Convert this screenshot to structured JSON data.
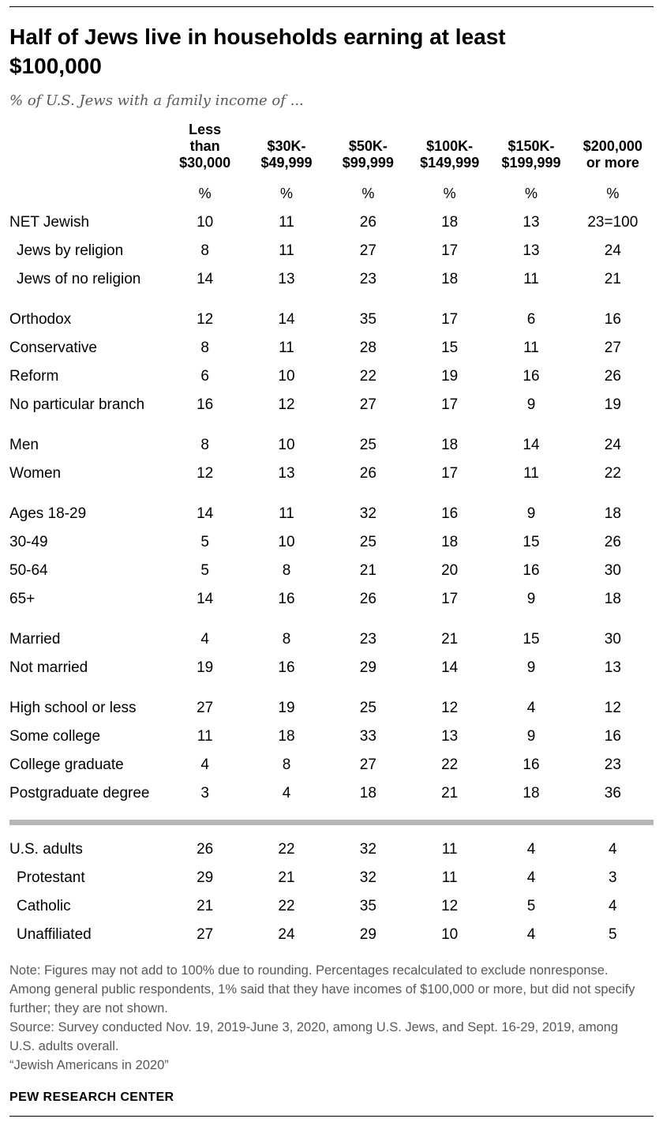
{
  "header": {
    "title": "Half of Jews live in households earning at least $100,000",
    "subtitle": "% of U.S. Jews with a family income of ..."
  },
  "chart_data": {
    "type": "table",
    "title": "Half of Jews live in households earning at least $100,000",
    "subtitle": "% of U.S. Jews with a family income of ...",
    "unit": "%",
    "columns": [
      {
        "label": "Less than $30,000",
        "lines": [
          "Less",
          "than",
          "$30,000"
        ]
      },
      {
        "label": "$30K-$49,999",
        "lines": [
          "$30K-",
          "$49,999"
        ]
      },
      {
        "label": "$50K-$99,999",
        "lines": [
          "$50K-",
          "$99,999"
        ]
      },
      {
        "label": "$100K-$149,999",
        "lines": [
          "$100K-",
          "$149,999"
        ]
      },
      {
        "label": "$150K-$199,999",
        "lines": [
          "$150K-",
          "$199,999"
        ]
      },
      {
        "label": "$200,000 or more",
        "lines": [
          "$200,000",
          "or more"
        ]
      }
    ],
    "groups": [
      {
        "divider_before": false,
        "rows": [
          {
            "label": "NET Jewish",
            "indent": false,
            "values": [
              "10",
              "11",
              "26",
              "18",
              "13",
              "23=100"
            ]
          },
          {
            "label": "Jews by religion",
            "indent": true,
            "values": [
              "8",
              "11",
              "27",
              "17",
              "13",
              "24"
            ]
          },
          {
            "label": "Jews of no religion",
            "indent": true,
            "values": [
              "14",
              "13",
              "23",
              "18",
              "11",
              "21"
            ]
          }
        ]
      },
      {
        "divider_before": false,
        "rows": [
          {
            "label": "Orthodox",
            "indent": false,
            "values": [
              "12",
              "14",
              "35",
              "17",
              "6",
              "16"
            ]
          },
          {
            "label": "Conservative",
            "indent": false,
            "values": [
              "8",
              "11",
              "28",
              "15",
              "11",
              "27"
            ]
          },
          {
            "label": "Reform",
            "indent": false,
            "values": [
              "6",
              "10",
              "22",
              "19",
              "16",
              "26"
            ]
          },
          {
            "label": "No particular branch",
            "indent": false,
            "values": [
              "16",
              "12",
              "27",
              "17",
              "9",
              "19"
            ]
          }
        ]
      },
      {
        "divider_before": false,
        "rows": [
          {
            "label": "Men",
            "indent": false,
            "values": [
              "8",
              "10",
              "25",
              "18",
              "14",
              "24"
            ]
          },
          {
            "label": "Women",
            "indent": false,
            "values": [
              "12",
              "13",
              "26",
              "17",
              "11",
              "22"
            ]
          }
        ]
      },
      {
        "divider_before": false,
        "rows": [
          {
            "label": "Ages 18-29",
            "indent": false,
            "values": [
              "14",
              "11",
              "32",
              "16",
              "9",
              "18"
            ]
          },
          {
            "label": "30-49",
            "indent": false,
            "values": [
              "5",
              "10",
              "25",
              "18",
              "15",
              "26"
            ]
          },
          {
            "label": "50-64",
            "indent": false,
            "values": [
              "5",
              "8",
              "21",
              "20",
              "16",
              "30"
            ]
          },
          {
            "label": "65+",
            "indent": false,
            "values": [
              "14",
              "16",
              "26",
              "17",
              "9",
              "18"
            ]
          }
        ]
      },
      {
        "divider_before": false,
        "rows": [
          {
            "label": "Married",
            "indent": false,
            "values": [
              "4",
              "8",
              "23",
              "21",
              "15",
              "30"
            ]
          },
          {
            "label": "Not married",
            "indent": false,
            "values": [
              "19",
              "16",
              "29",
              "14",
              "9",
              "13"
            ]
          }
        ]
      },
      {
        "divider_before": false,
        "rows": [
          {
            "label": "High school or less",
            "indent": false,
            "values": [
              "27",
              "19",
              "25",
              "12",
              "4",
              "12"
            ]
          },
          {
            "label": "Some college",
            "indent": false,
            "values": [
              "11",
              "18",
              "33",
              "13",
              "9",
              "16"
            ]
          },
          {
            "label": "College graduate",
            "indent": false,
            "values": [
              "4",
              "8",
              "27",
              "22",
              "16",
              "23"
            ]
          },
          {
            "label": "Postgraduate degree",
            "indent": false,
            "values": [
              "3",
              "4",
              "18",
              "21",
              "18",
              "36"
            ]
          }
        ]
      },
      {
        "divider_before": true,
        "rows": [
          {
            "label": "U.S. adults",
            "indent": false,
            "values": [
              "26",
              "22",
              "32",
              "11",
              "4",
              "4"
            ]
          },
          {
            "label": "Protestant",
            "indent": true,
            "values": [
              "29",
              "21",
              "32",
              "11",
              "4",
              "3"
            ]
          },
          {
            "label": "Catholic",
            "indent": true,
            "values": [
              "21",
              "22",
              "35",
              "12",
              "5",
              "4"
            ]
          },
          {
            "label": "Unaffiliated",
            "indent": true,
            "values": [
              "27",
              "24",
              "29",
              "10",
              "4",
              "5"
            ]
          }
        ]
      }
    ]
  },
  "notes": {
    "note": "Note: Figures may not add to 100% due to rounding. Percentages recalculated to exclude nonresponse. Among general public respondents, 1% said that they have incomes of $100,000 or more, but did not specify further; they are not shown.",
    "source": "Source: Survey conducted Nov. 19, 2019-June 3, 2020, among U.S. Jews, and Sept. 16-29, 2019, among U.S. adults overall.",
    "report": "“Jewish Americans in 2020”"
  },
  "footer": {
    "brand": "PEW RESEARCH CENTER"
  },
  "colors": {
    "text": "#000000",
    "note_gray": "#58585a",
    "divider_gray": "#b7b7b7"
  }
}
